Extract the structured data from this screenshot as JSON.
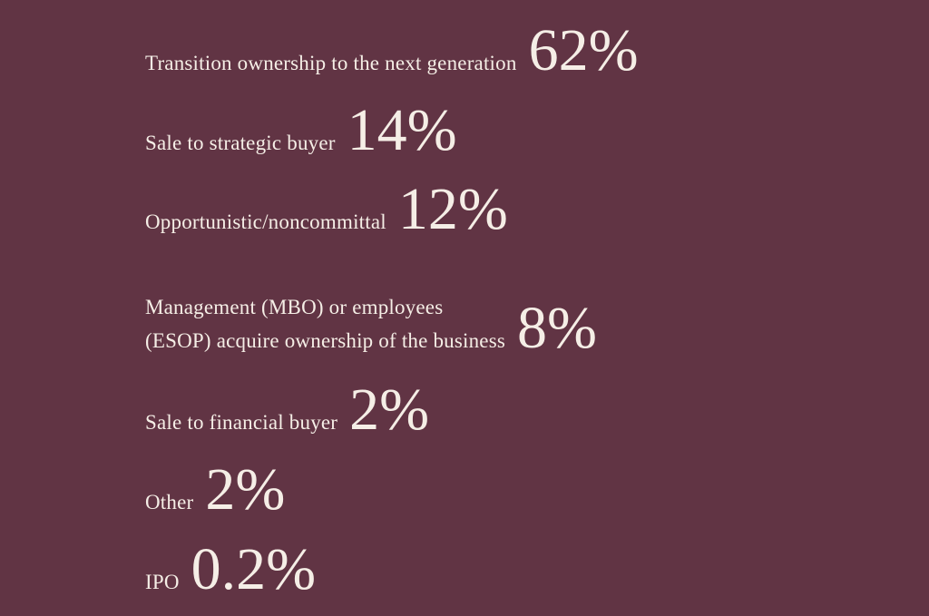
{
  "theme": {
    "background_color": "#613444",
    "text_color": "#F5EEE6"
  },
  "items": [
    {
      "label": "Transition ownership to the next generation",
      "value": "62%"
    },
    {
      "label": "Sale to strategic buyer",
      "value": "14%"
    },
    {
      "label": "Opportunistic/noncommittal",
      "value": "12%"
    },
    {
      "label": "Management (MBO) or employees\n(ESOP) acquire ownership of the business",
      "value": "8%"
    },
    {
      "label": "Sale to financial buyer",
      "value": "2%"
    },
    {
      "label": "Other",
      "value": "2%"
    },
    {
      "label": "IPO",
      "value": "0.2%"
    }
  ],
  "chart_data": {
    "type": "table",
    "title": "",
    "categories": [
      "Transition ownership to the next generation",
      "Sale to strategic buyer",
      "Opportunistic/noncommittal",
      "Management (MBO) or employees (ESOP) acquire ownership of the business",
      "Sale to financial buyer",
      "Other",
      "IPO"
    ],
    "values": [
      62,
      14,
      12,
      8,
      2,
      2,
      0.2
    ],
    "value_labels": [
      "62%",
      "14%",
      "12%",
      "8%",
      "2%",
      "2%",
      "0.2%"
    ],
    "unit": "percent",
    "layout_hints": {
      "style": "text stat list, value sized large beside each label",
      "background": "#613444",
      "text_color": "#F5EEE6",
      "grid": false,
      "legend": false
    }
  }
}
